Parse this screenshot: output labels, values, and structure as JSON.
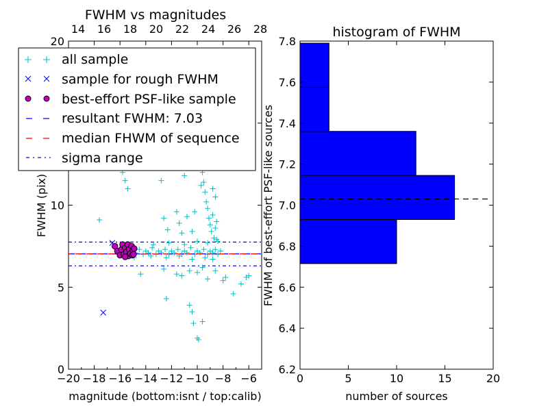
{
  "chart_data": [
    {
      "type": "scatter",
      "title": "FWHM vs magnitudes",
      "xlabel": "magnitude (bottom:isnt / top:calib)",
      "ylabel": "FWHM (pix)",
      "xlim": [
        -20,
        -5
      ],
      "ylim": [
        0,
        20
      ],
      "xticks": [
        "−20",
        "−18",
        "−16",
        "−14",
        "−12",
        "−10",
        "−8",
        "−6"
      ],
      "top_xticks": [
        "14",
        "16",
        "18",
        "20",
        "22",
        "24",
        "26",
        "28"
      ],
      "yticks": [
        "0",
        "5",
        "10",
        "15",
        "20"
      ],
      "legend": [
        {
          "label": "all sample",
          "marker": "+",
          "color": "#00bfbf"
        },
        {
          "label": "sample for rough FWHM",
          "marker": "x",
          "color": "#0000ff"
        },
        {
          "label": "best-effort PSF-like sample",
          "marker": "o",
          "color": "#bf00bf"
        },
        {
          "label": "resultant FWHM: 7.03",
          "style": "dashed",
          "color": "#0000ff"
        },
        {
          "label": "median FHWM of sequence",
          "style": "dashed",
          "color": "#ff0000"
        },
        {
          "label": "sigma range",
          "style": "dashdot",
          "color": "#0000ff"
        }
      ],
      "hlines": [
        {
          "name": "resultant",
          "y": 7.03,
          "color": "#0000ff",
          "style": "dashed"
        },
        {
          "name": "median",
          "y": 7.03,
          "color": "#ff0000",
          "style": "dashed"
        },
        {
          "name": "sigma-upper",
          "y": 7.75,
          "color": "#0000ff",
          "style": "dashdot"
        },
        {
          "name": "sigma-lower",
          "y": 6.3,
          "color": "#0000ff",
          "style": "dashdot"
        }
      ],
      "series": [
        {
          "name": "all sample",
          "marker": "+",
          "color": "#00bfbf",
          "points": [
            [
              -17.6,
              9.1
            ],
            [
              -16.2,
              7.0
            ],
            [
              -16.0,
              7.2
            ],
            [
              -15.8,
              7.1
            ],
            [
              -15.5,
              7.3
            ],
            [
              -15.2,
              7.0
            ],
            [
              -15.0,
              7.2
            ],
            [
              -14.8,
              7.1
            ],
            [
              -14.5,
              7.3
            ],
            [
              -14.2,
              7.0
            ],
            [
              -14.0,
              7.2
            ],
            [
              -13.8,
              7.1
            ],
            [
              -13.5,
              7.4
            ],
            [
              -13.2,
              7.0
            ],
            [
              -13.0,
              7.2
            ],
            [
              -12.8,
              7.1
            ],
            [
              -12.5,
              7.3
            ],
            [
              -12.2,
              7.0
            ],
            [
              -12.0,
              7.2
            ],
            [
              -11.8,
              7.1
            ],
            [
              -11.5,
              7.3
            ],
            [
              -11.2,
              7.0
            ],
            [
              -11.0,
              7.2
            ],
            [
              -10.8,
              7.1
            ],
            [
              -10.5,
              7.4
            ],
            [
              -10.2,
              7.0
            ],
            [
              -10.0,
              7.2
            ],
            [
              -9.8,
              7.1
            ],
            [
              -9.5,
              7.3
            ],
            [
              -9.2,
              7.0
            ],
            [
              -9.0,
              7.2
            ],
            [
              -8.8,
              7.1
            ],
            [
              -8.6,
              7.3
            ],
            [
              -8.4,
              7.0
            ],
            [
              -8.2,
              7.2
            ],
            [
              -15.6,
              6.9
            ],
            [
              -14.9,
              6.8
            ],
            [
              -13.6,
              6.9
            ],
            [
              -12.4,
              6.8
            ],
            [
              -11.4,
              6.9
            ],
            [
              -10.4,
              6.7
            ],
            [
              -9.4,
              6.8
            ],
            [
              -8.8,
              6.7
            ],
            [
              -13.4,
              7.6
            ],
            [
              -12.2,
              7.7
            ],
            [
              -11.0,
              7.6
            ],
            [
              -10.0,
              7.8
            ],
            [
              -9.2,
              7.7
            ],
            [
              -8.5,
              7.9
            ],
            [
              -14.4,
              5.8
            ],
            [
              -12.6,
              6.1
            ],
            [
              -11.6,
              5.8
            ],
            [
              -11.2,
              5.7
            ],
            [
              -10.6,
              6.0
            ],
            [
              -10.0,
              5.9
            ],
            [
              -9.6,
              6.2
            ],
            [
              -9.2,
              5.5
            ],
            [
              -8.6,
              6.0
            ],
            [
              -8.0,
              5.4
            ],
            [
              -7.8,
              5.6
            ],
            [
              -6.2,
              5.6
            ],
            [
              -6.0,
              5.7
            ],
            [
              -6.6,
              5.2
            ],
            [
              -7.2,
              4.6
            ],
            [
              -12.4,
              4.3
            ],
            [
              -10.6,
              3.9
            ],
            [
              -10.4,
              3.5
            ],
            [
              -10.3,
              2.8
            ],
            [
              -9.6,
              2.9
            ],
            [
              -10.0,
              1.9
            ],
            [
              -9.9,
              1.8
            ],
            [
              -16.6,
              14.5
            ],
            [
              -16.5,
              13.5
            ],
            [
              -16.0,
              13.2
            ],
            [
              -15.8,
              12.0
            ],
            [
              -15.6,
              11.5
            ],
            [
              -15.4,
              11.0
            ],
            [
              -12.6,
              9.2
            ],
            [
              -12.3,
              8.5
            ],
            [
              -11.6,
              9.6
            ],
            [
              -11.4,
              8.9
            ],
            [
              -11.2,
              8.3
            ],
            [
              -10.8,
              9.3
            ],
            [
              -10.4,
              8.4
            ],
            [
              -10.2,
              9.6
            ],
            [
              -9.6,
              12.0
            ],
            [
              -9.5,
              11.4
            ],
            [
              -9.4,
              10.8
            ],
            [
              -9.3,
              10.2
            ],
            [
              -9.2,
              9.8
            ],
            [
              -9.1,
              9.2
            ],
            [
              -9.0,
              8.8
            ],
            [
              -8.9,
              8.4
            ],
            [
              -8.8,
              9.4
            ],
            [
              -8.7,
              8.0
            ],
            [
              -8.6,
              8.6
            ],
            [
              -8.5,
              9.0
            ],
            [
              -8.4,
              7.8
            ],
            [
              -9.0,
              12.5
            ],
            [
              -9.1,
              13.5
            ],
            [
              -9.2,
              14.6
            ],
            [
              -9.3,
              15.8
            ],
            [
              -9.5,
              17.5
            ],
            [
              -9.6,
              18.8
            ],
            [
              -12.8,
              11.5
            ],
            [
              -11.0,
              11.8
            ],
            [
              -10.0,
              12.6
            ],
            [
              -8.8,
              11.0
            ],
            [
              -8.6,
              10.5
            ],
            [
              -9.7,
              11.2
            ]
          ]
        },
        {
          "name": "sample for rough FWHM",
          "marker": "x",
          "color": "#0000ff",
          "points": [
            [
              -17.3,
              3.45
            ],
            [
              -16.6,
              7.7
            ]
          ]
        },
        {
          "name": "best-effort PSF-like sample",
          "marker": "o",
          "color": "#bf00bf",
          "points": [
            [
              -16.4,
              7.5
            ],
            [
              -16.2,
              7.2
            ],
            [
              -16.0,
              6.95
            ],
            [
              -15.9,
              7.3
            ],
            [
              -15.8,
              7.6
            ],
            [
              -15.7,
              7.0
            ],
            [
              -15.6,
              7.4
            ],
            [
              -15.5,
              7.15
            ],
            [
              -15.4,
              7.6
            ],
            [
              -15.35,
              6.9
            ],
            [
              -15.3,
              7.3
            ],
            [
              -15.2,
              7.05
            ],
            [
              -15.1,
              7.5
            ],
            [
              -15.05,
              6.95
            ],
            [
              -15.0,
              7.25
            ],
            [
              -14.95,
              7.0
            ],
            [
              -14.9,
              7.35
            ],
            [
              -15.6,
              6.85
            ]
          ]
        }
      ]
    },
    {
      "type": "bar",
      "orientation": "horizontal",
      "title": "histogram of FWHM",
      "xlabel": "number of sources",
      "ylabel": "FWHM of best-effort PSF-like sources",
      "xlim": [
        0,
        20
      ],
      "ylim": [
        6.2,
        7.8
      ],
      "xticks": [
        "0",
        "5",
        "10",
        "15",
        "20"
      ],
      "yticks": [
        "6.2",
        "6.4",
        "6.6",
        "6.8",
        "7.0",
        "7.2",
        "7.4",
        "7.6",
        "7.8"
      ],
      "bins": [
        {
          "from": 6.715,
          "to": 6.93,
          "count": 10
        },
        {
          "from": 6.93,
          "to": 7.145,
          "count": 16
        },
        {
          "from": 7.145,
          "to": 7.36,
          "count": 12
        },
        {
          "from": 7.36,
          "to": 7.575,
          "count": 3
        },
        {
          "from": 7.575,
          "to": 7.79,
          "count": 3
        }
      ],
      "bar_color": "#0000ff",
      "reference_line": {
        "y": 7.03,
        "style": "dashed",
        "color": "#000000"
      }
    }
  ]
}
